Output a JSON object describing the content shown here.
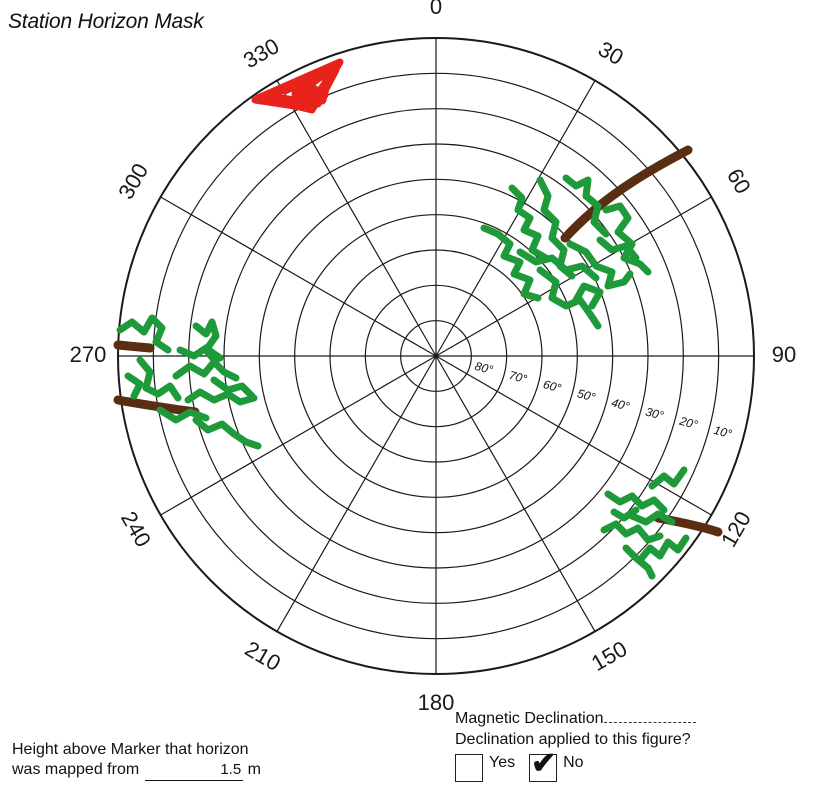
{
  "title": "Station Horizon Mask",
  "azimuth_labels": [
    "0",
    "30",
    "60",
    "90",
    "120",
    "150",
    "180",
    "210",
    "240",
    "270",
    "300",
    "330"
  ],
  "elevation_labels": [
    "80°",
    "70°",
    "60°",
    "50°",
    "40°",
    "30°",
    "20°",
    "10°"
  ],
  "height_block": {
    "line1": "Height above Marker that horizon",
    "line2_prefix": "was mapped from",
    "value": "1.5",
    "unit": "m"
  },
  "declination": {
    "magnetic_label": "Magnetic Declination",
    "applied_question": "Declination applied to this figure?",
    "yes_label": "Yes",
    "no_label": "No",
    "selected": "No"
  },
  "obstructions": [
    {
      "kind": "red-marking",
      "color": "#e8231c",
      "azimuth": 340
    },
    {
      "kind": "tree-foliage",
      "color": "#1f9a3a",
      "azimuth": 47
    },
    {
      "kind": "tree-trunk",
      "color": "#5a2e12",
      "azimuth": 55
    },
    {
      "kind": "tree-foliage",
      "color": "#1f9a3a",
      "azimuth": 262
    },
    {
      "kind": "tree-trunk",
      "color": "#5a2e12",
      "azimuth": 268
    },
    {
      "kind": "tree-trunk",
      "color": "#5a2e12",
      "azimuth": 256
    },
    {
      "kind": "tree-foliage",
      "color": "#1f9a3a",
      "azimuth": 118
    },
    {
      "kind": "tree-trunk",
      "color": "#5a2e12",
      "azimuth": 116
    }
  ]
}
